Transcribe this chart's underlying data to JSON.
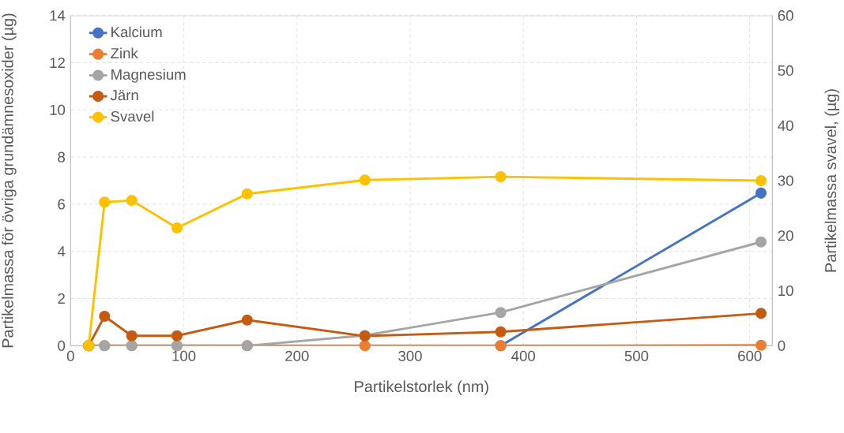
{
  "chart_data": {
    "type": "line",
    "xlabel": "Partikelstorlek (nm)",
    "ylabel": "Partikelmassa för övriga grundämnesoxider (µg)",
    "y2label": "Partikelmassa svavel, (µg)",
    "x": [
      16,
      30,
      54,
      94,
      156,
      260,
      380,
      610
    ],
    "series": [
      {
        "name": "Kalcium",
        "color": "#4472c4",
        "values": [
          null,
          null,
          null,
          null,
          null,
          null,
          0,
          6.47
        ]
      },
      {
        "name": "Zink",
        "color": "#ed7d31",
        "values": [
          0,
          0,
          0,
          0,
          0,
          0,
          0,
          0.02
        ]
      },
      {
        "name": "Magnesium",
        "color": "#a5a5a5",
        "values": [
          0,
          0,
          0,
          0,
          0,
          0.44,
          1.41,
          4.4
        ]
      },
      {
        "name": "Järn",
        "color": "#c55a11",
        "values": [
          0,
          1.25,
          0.42,
          0.42,
          1.09,
          0.41,
          0.59,
          1.37
        ]
      },
      {
        "name": "Svavel",
        "color": "#ffc000",
        "axis": "y2",
        "values": [
          0,
          26.1,
          26.4,
          21.4,
          27.6,
          30.1,
          30.7,
          30.0
        ]
      }
    ],
    "xlim": [
      0,
      620
    ],
    "xticks": [
      0,
      100,
      200,
      300,
      400,
      500,
      600
    ],
    "ylim": [
      0,
      14
    ],
    "yticks": [
      0,
      2,
      4,
      6,
      8,
      10,
      12,
      14
    ],
    "y2lim": [
      0,
      60
    ],
    "y2ticks": [
      0,
      10,
      20,
      30,
      40,
      50,
      60
    ],
    "grid": true,
    "legend": "top left",
    "marker": "circle",
    "line_style": "solid"
  }
}
